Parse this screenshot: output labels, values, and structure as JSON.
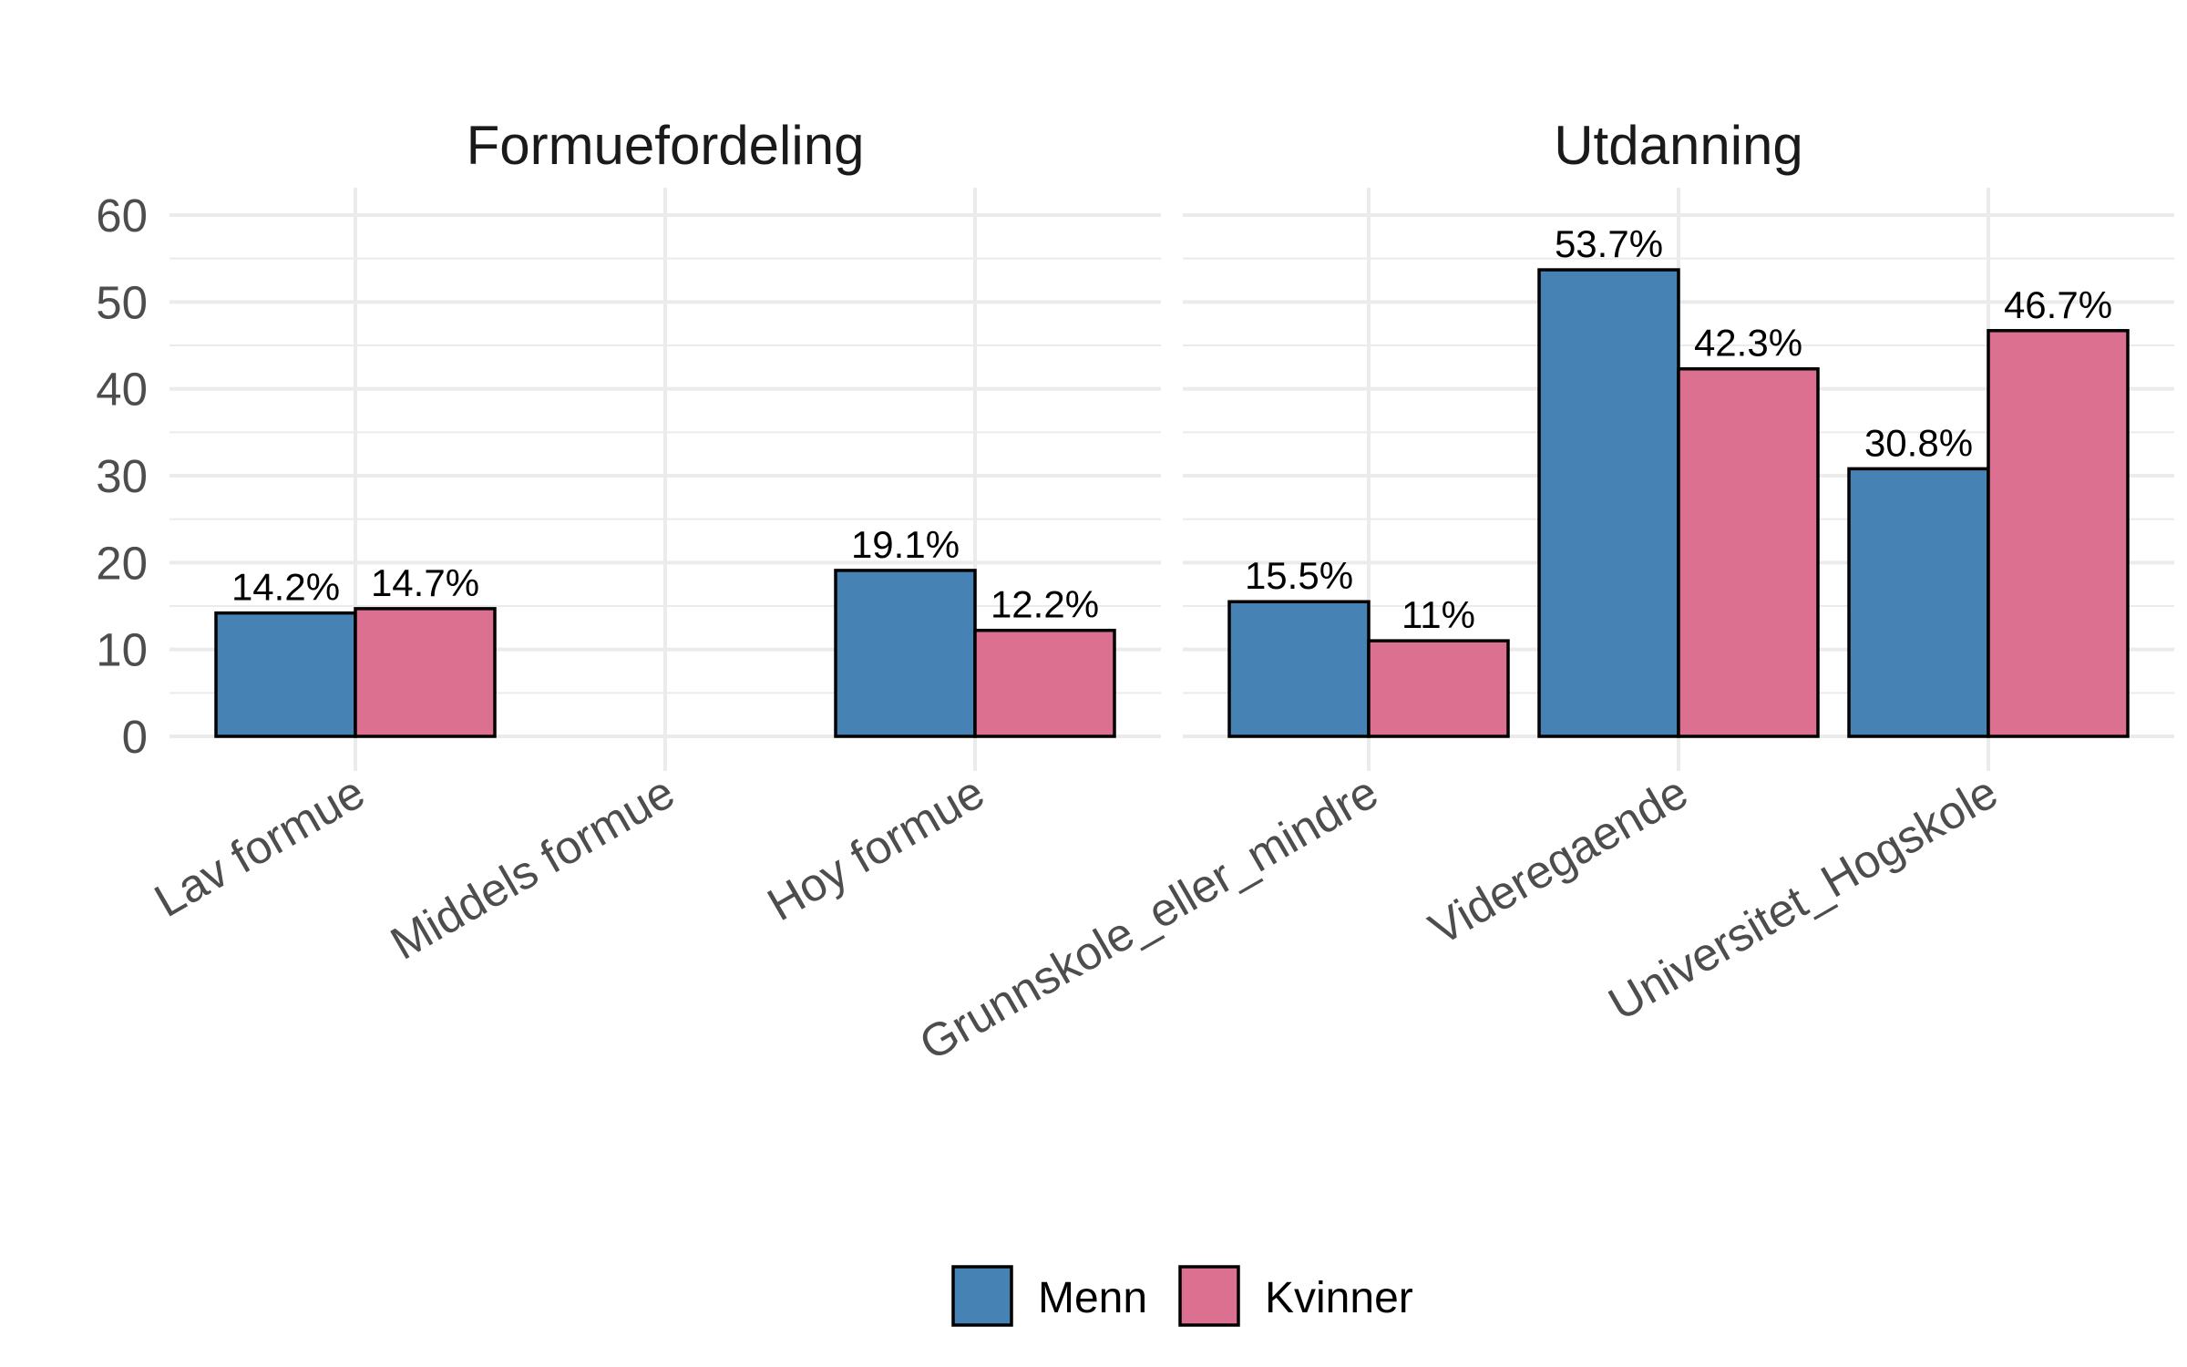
{
  "chart_data": {
    "type": "bar",
    "y_ticks": [
      "0",
      "10",
      "20",
      "30",
      "40",
      "50",
      "60"
    ],
    "ylim": [
      0,
      60
    ],
    "grid": true,
    "legend_position": "bottom",
    "legend": {
      "entries": [
        {
          "label": "Menn",
          "color": "#4682b4"
        },
        {
          "label": "Kvinner",
          "color": "#db7090"
        }
      ]
    },
    "panels": [
      {
        "title": "Formuefordeling",
        "categories": [
          "Lav formue",
          "Middels formue",
          "Hoy formue"
        ],
        "series": [
          {
            "name": "Menn",
            "values": [
              14.2,
              null,
              19.1
            ],
            "labels": [
              "14.2%",
              "",
              "19.1%"
            ]
          },
          {
            "name": "Kvinner",
            "values": [
              14.7,
              null,
              12.2
            ],
            "labels": [
              "14.7%",
              "",
              "12.2%"
            ]
          }
        ]
      },
      {
        "title": "Utdanning",
        "categories": [
          "Grunnskole_eller_mindre",
          "Videregaende",
          "Universitet_Hogskole"
        ],
        "series": [
          {
            "name": "Menn",
            "values": [
              15.5,
              53.7,
              30.8
            ],
            "labels": [
              "15.5%",
              "53.7%",
              "30.8%"
            ]
          },
          {
            "name": "Kvinner",
            "values": [
              11,
              42.3,
              46.7
            ],
            "labels": [
              "11%",
              "42.3%",
              "46.7%"
            ]
          }
        ]
      }
    ]
  }
}
